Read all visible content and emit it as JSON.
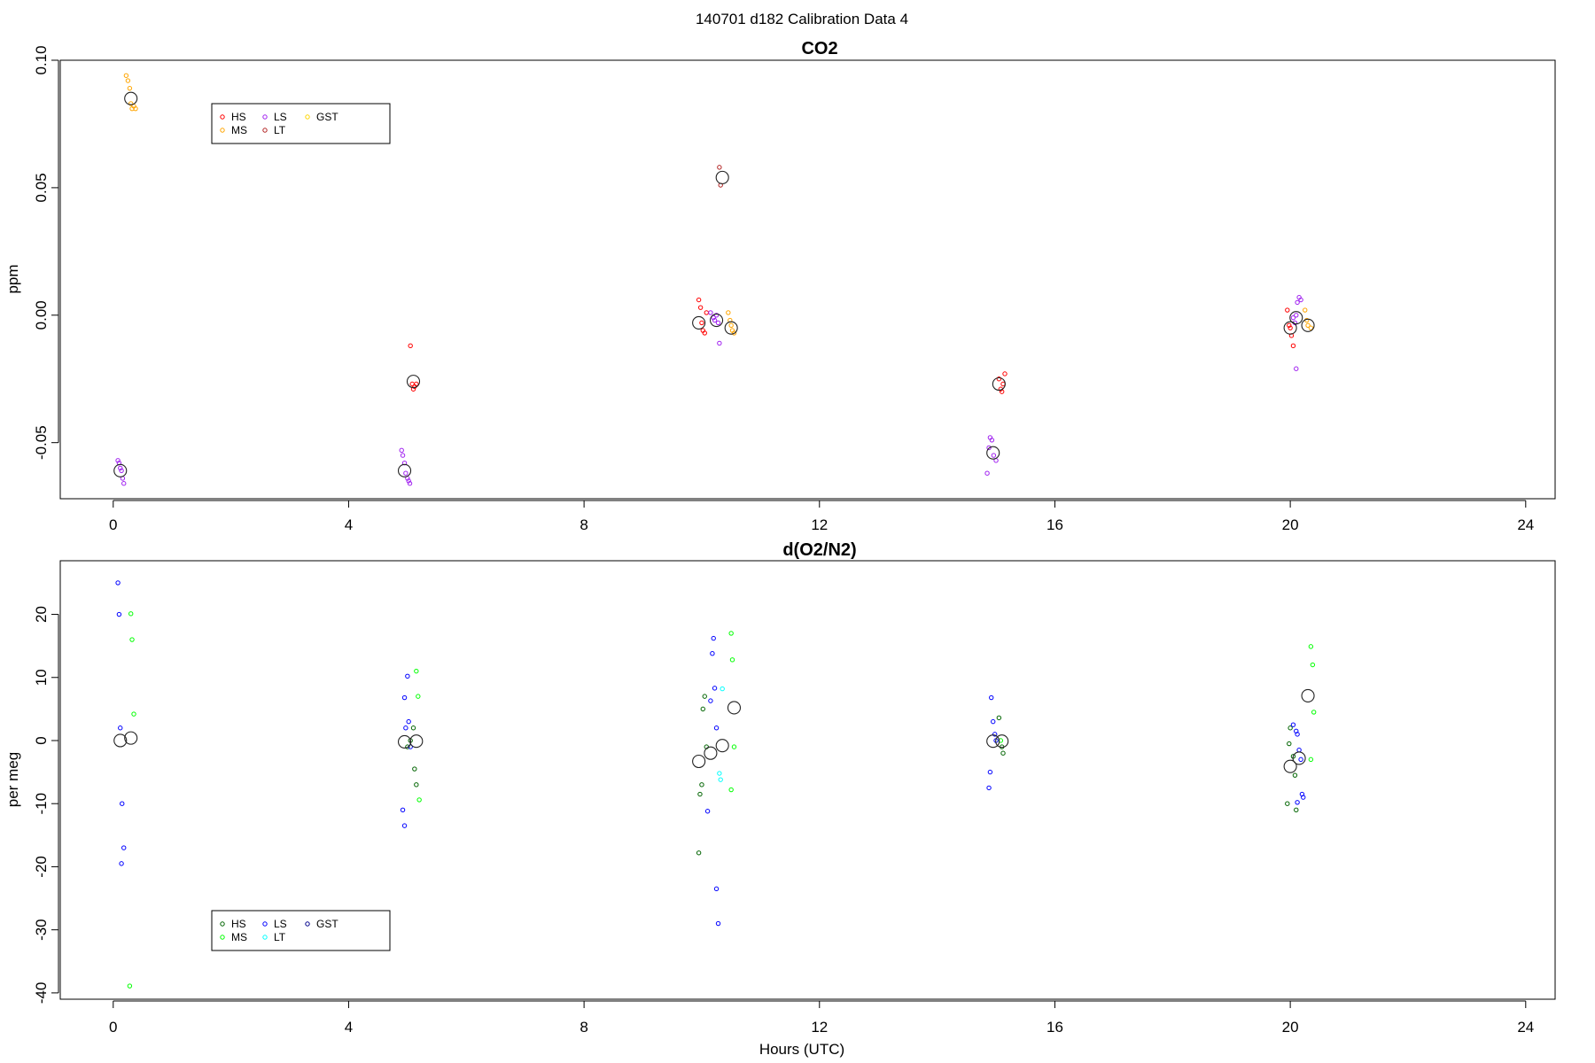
{
  "figure_title": "140701   d182   Calibration Data 4",
  "xlabel": "Hours (UTC)",
  "chart_data": [
    {
      "type": "scatter",
      "title": "CO2",
      "xlabel": "",
      "ylabel": "ppm",
      "xlim": [
        -0.9,
        24.5
      ],
      "ylim": [
        -0.072,
        0.1
      ],
      "xticks": [
        0,
        4,
        8,
        12,
        16,
        20,
        24
      ],
      "yticks": [
        -0.05,
        0.0,
        0.05,
        0.1
      ],
      "ytick_labels": [
        "-0.05",
        "0.00",
        "0.05",
        "0.10"
      ],
      "legend": {
        "placement": "top-left",
        "entries": [
          {
            "label": "HS",
            "color": "#ff0000"
          },
          {
            "label": "MS",
            "color": "#ffa500"
          },
          {
            "label": "LS",
            "color": "#a020f0"
          },
          {
            "label": "LT",
            "color": "#b22222"
          },
          {
            "label": "GST",
            "color": "#ffd700"
          }
        ]
      },
      "series": [
        {
          "name": "HS",
          "color": "#ff0000",
          "points": [
            [
              5.05,
              -0.012
            ],
            [
              5.08,
              -0.027
            ],
            [
              5.1,
              -0.029
            ],
            [
              5.12,
              -0.028
            ],
            [
              5.15,
              -0.027
            ],
            [
              9.95,
              0.006
            ],
            [
              9.98,
              0.003
            ],
            [
              10.0,
              -0.003
            ],
            [
              10.02,
              -0.006
            ],
            [
              10.05,
              -0.007
            ],
            [
              10.08,
              0.001
            ],
            [
              15.05,
              -0.025
            ],
            [
              15.08,
              -0.029
            ],
            [
              15.1,
              -0.03
            ],
            [
              15.12,
              -0.027
            ],
            [
              15.15,
              -0.023
            ],
            [
              19.95,
              0.002
            ],
            [
              19.98,
              -0.004
            ],
            [
              20.0,
              -0.005
            ],
            [
              20.02,
              -0.008
            ],
            [
              20.05,
              -0.012
            ]
          ]
        },
        {
          "name": "MS",
          "color": "#ffa500",
          "points": [
            [
              0.22,
              0.094
            ],
            [
              0.25,
              0.092
            ],
            [
              0.28,
              0.089
            ],
            [
              0.3,
              0.083
            ],
            [
              0.32,
              0.081
            ],
            [
              0.35,
              0.082
            ],
            [
              0.38,
              0.081
            ],
            [
              10.45,
              0.001
            ],
            [
              10.48,
              -0.002
            ],
            [
              10.5,
              -0.004
            ],
            [
              10.52,
              -0.006
            ],
            [
              10.55,
              -0.007
            ],
            [
              20.25,
              0.002
            ],
            [
              20.28,
              -0.002
            ],
            [
              20.3,
              -0.004
            ],
            [
              20.35,
              -0.005
            ]
          ]
        },
        {
          "name": "LS",
          "color": "#a020f0",
          "points": [
            [
              0.08,
              -0.057
            ],
            [
              0.1,
              -0.058
            ],
            [
              0.12,
              -0.06
            ],
            [
              0.14,
              -0.061
            ],
            [
              0.16,
              -0.064
            ],
            [
              0.18,
              -0.066
            ],
            [
              4.9,
              -0.053
            ],
            [
              4.92,
              -0.055
            ],
            [
              4.95,
              -0.058
            ],
            [
              4.97,
              -0.062
            ],
            [
              5.0,
              -0.064
            ],
            [
              5.02,
              -0.065
            ],
            [
              5.04,
              -0.066
            ],
            [
              14.85,
              -0.062
            ],
            [
              14.88,
              -0.052
            ],
            [
              14.9,
              -0.048
            ],
            [
              14.93,
              -0.049
            ],
            [
              14.96,
              -0.055
            ],
            [
              15.0,
              -0.057
            ],
            [
              10.2,
              -0.001
            ],
            [
              10.22,
              -0.002
            ],
            [
              10.25,
              0.0
            ],
            [
              10.28,
              -0.003
            ],
            [
              10.3,
              -0.011
            ],
            [
              10.15,
              0.001
            ],
            [
              20.05,
              -0.001
            ],
            [
              20.1,
              0.0
            ],
            [
              20.12,
              0.005
            ],
            [
              20.15,
              0.007
            ],
            [
              20.18,
              0.006
            ],
            [
              20.08,
              -0.003
            ],
            [
              20.1,
              -0.021
            ]
          ]
        },
        {
          "name": "LT",
          "color": "#b22222",
          "points": [
            [
              10.3,
              0.058
            ],
            [
              10.32,
              0.051
            ]
          ]
        }
      ],
      "means": [
        [
          0.12,
          -0.061
        ],
        [
          0.3,
          0.085
        ],
        [
          4.95,
          -0.061
        ],
        [
          5.1,
          -0.026
        ],
        [
          9.95,
          -0.003
        ],
        [
          10.25,
          -0.002
        ],
        [
          10.35,
          0.054
        ],
        [
          10.5,
          -0.005
        ],
        [
          14.95,
          -0.054
        ],
        [
          15.05,
          -0.027
        ],
        [
          20.0,
          -0.005
        ],
        [
          20.1,
          -0.001
        ],
        [
          20.3,
          -0.004
        ]
      ]
    },
    {
      "type": "scatter",
      "title": "d(O2/N2)",
      "xlabel": "Hours (UTC)",
      "ylabel": "per meg",
      "xlim": [
        -0.9,
        24.5
      ],
      "ylim": [
        -41,
        28.5
      ],
      "xticks": [
        0,
        4,
        8,
        12,
        16,
        20,
        24
      ],
      "yticks": [
        -40,
        -30,
        -20,
        -10,
        0,
        10,
        20
      ],
      "ytick_labels": [
        "-40",
        "-30",
        "-20",
        "-10",
        "0",
        "10",
        "20"
      ],
      "legend": {
        "placement": "bottom-left",
        "entries": [
          {
            "label": "HS",
            "color": "#006400"
          },
          {
            "label": "MS",
            "color": "#00ff00"
          },
          {
            "label": "LS",
            "color": "#0000ff"
          },
          {
            "label": "LT",
            "color": "#00ffff"
          },
          {
            "label": "GST",
            "color": "#00008b"
          }
        ]
      },
      "series": [
        {
          "name": "HS",
          "color": "#006400",
          "points": [
            [
              5.0,
              -1.0
            ],
            [
              5.05,
              0.0
            ],
            [
              5.1,
              2.0
            ],
            [
              5.12,
              -4.5
            ],
            [
              5.15,
              -7.0
            ],
            [
              9.95,
              -17.8
            ],
            [
              9.97,
              -8.5
            ],
            [
              10.0,
              -7.0
            ],
            [
              10.02,
              5.0
            ],
            [
              10.05,
              7.0
            ],
            [
              10.08,
              -1.0
            ],
            [
              15.05,
              3.6
            ],
            [
              15.1,
              -1.0
            ],
            [
              15.12,
              -2.0
            ],
            [
              19.95,
              -10.0
            ],
            [
              19.98,
              -0.5
            ],
            [
              20.0,
              2.0
            ],
            [
              20.05,
              -2.5
            ],
            [
              20.08,
              -5.5
            ],
            [
              20.1,
              -11.0
            ]
          ]
        },
        {
          "name": "MS",
          "color": "#00ff00",
          "points": [
            [
              0.3,
              20.1
            ],
            [
              0.32,
              16.0
            ],
            [
              0.35,
              4.2
            ],
            [
              0.28,
              -38.9
            ],
            [
              5.15,
              11.0
            ],
            [
              5.18,
              7.0
            ],
            [
              5.2,
              -9.4
            ],
            [
              10.5,
              17.0
            ],
            [
              10.52,
              12.8
            ],
            [
              10.55,
              -1.0
            ],
            [
              10.5,
              -7.8
            ],
            [
              15.08,
              0.0
            ],
            [
              20.35,
              14.9
            ],
            [
              20.38,
              12.0
            ],
            [
              20.4,
              4.5
            ],
            [
              20.35,
              -3.0
            ]
          ]
        },
        {
          "name": "LS",
          "color": "#0000ff",
          "points": [
            [
              0.08,
              25.0
            ],
            [
              0.1,
              20.0
            ],
            [
              0.12,
              2.0
            ],
            [
              0.15,
              -10.0
            ],
            [
              0.18,
              -17.0
            ],
            [
              0.14,
              -19.5
            ],
            [
              4.95,
              6.8
            ],
            [
              5.0,
              10.2
            ],
            [
              4.97,
              2.0
            ],
            [
              5.02,
              3.0
            ],
            [
              5.05,
              -1.0
            ],
            [
              4.92,
              -11.0
            ],
            [
              4.95,
              -13.5
            ],
            [
              10.2,
              16.2
            ],
            [
              10.18,
              13.8
            ],
            [
              10.22,
              8.3
            ],
            [
              10.15,
              6.3
            ],
            [
              10.25,
              2.0
            ],
            [
              10.1,
              -11.2
            ],
            [
              10.25,
              -23.5
            ],
            [
              10.28,
              -29.0
            ],
            [
              14.92,
              6.8
            ],
            [
              14.95,
              3.0
            ],
            [
              14.98,
              1.0
            ],
            [
              15.0,
              0.0
            ],
            [
              14.9,
              -5.0
            ],
            [
              14.88,
              -7.5
            ],
            [
              20.05,
              2.5
            ],
            [
              20.1,
              1.5
            ],
            [
              20.12,
              1.0
            ],
            [
              20.15,
              -1.5
            ],
            [
              20.18,
              -3.0
            ],
            [
              20.2,
              -8.5
            ],
            [
              20.22,
              -9.0
            ],
            [
              20.12,
              -9.8
            ]
          ]
        },
        {
          "name": "LT",
          "color": "#00ffff",
          "points": [
            [
              10.35,
              8.2
            ],
            [
              10.3,
              -5.2
            ],
            [
              10.32,
              -6.2
            ]
          ]
        }
      ],
      "means": [
        [
          0.12,
          0.0
        ],
        [
          0.3,
          0.4
        ],
        [
          4.95,
          -0.2
        ],
        [
          5.15,
          -0.1
        ],
        [
          9.95,
          -3.3
        ],
        [
          10.15,
          -2.0
        ],
        [
          10.35,
          -0.8
        ],
        [
          10.55,
          5.2
        ],
        [
          14.95,
          -0.1
        ],
        [
          15.1,
          -0.1
        ],
        [
          20.0,
          -4.1
        ],
        [
          20.15,
          -2.8
        ],
        [
          20.3,
          7.1
        ]
      ]
    }
  ]
}
